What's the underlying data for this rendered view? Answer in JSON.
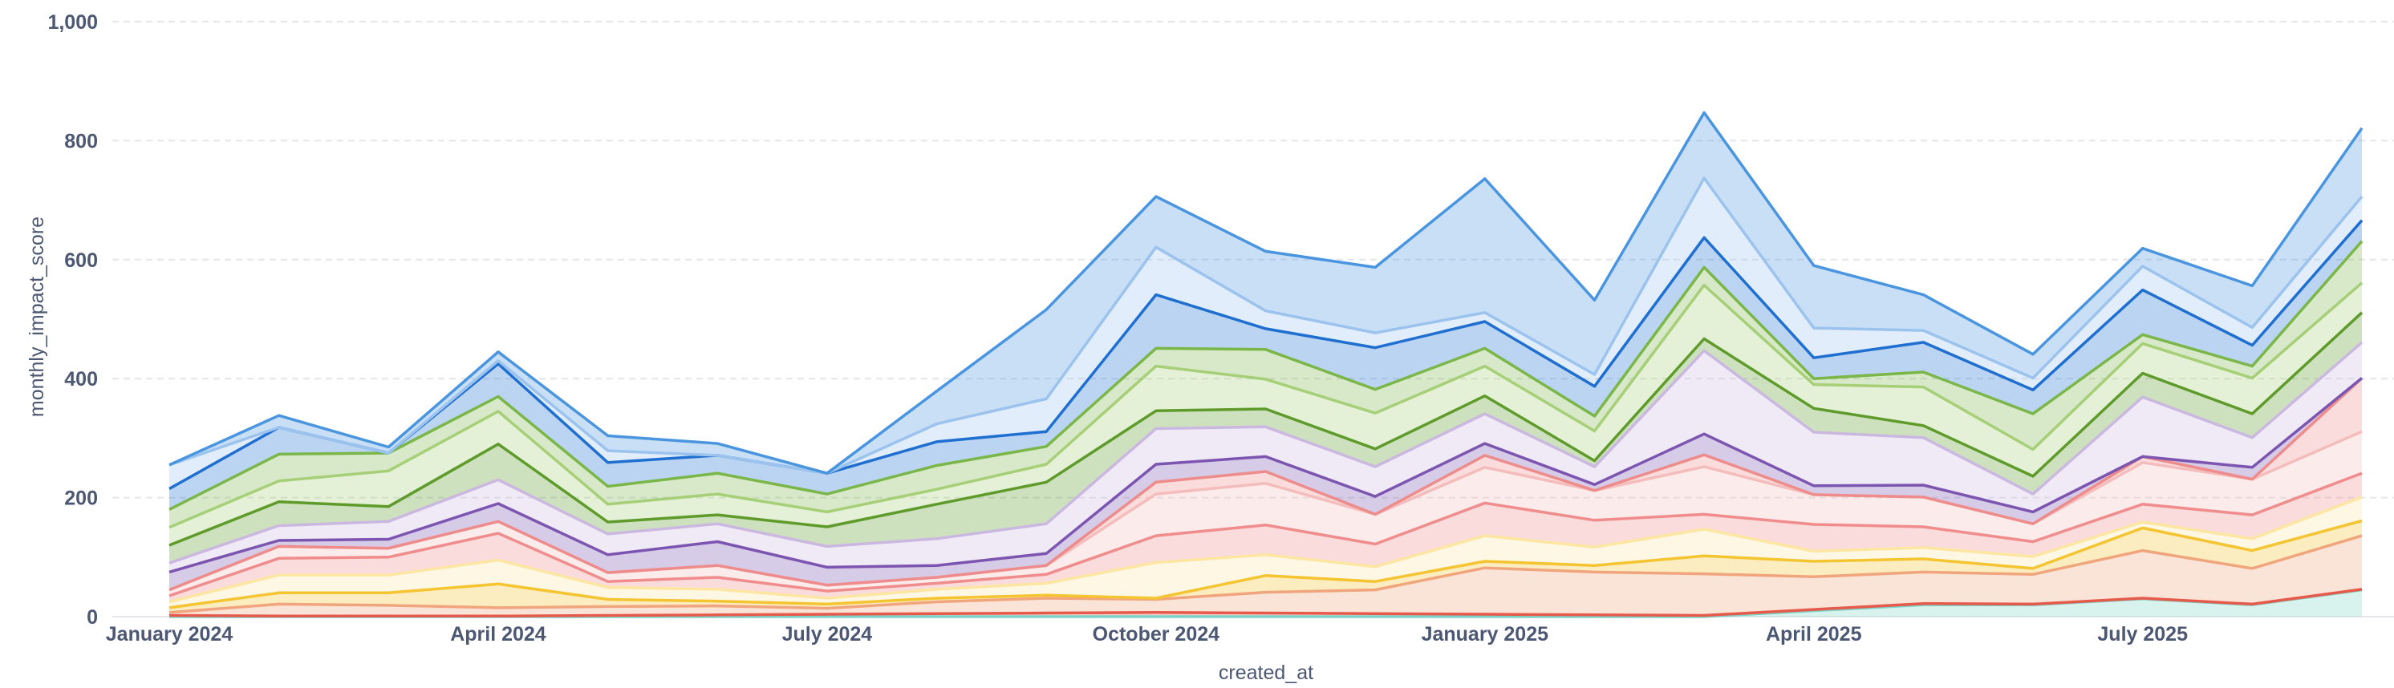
{
  "chart_data": {
    "type": "area",
    "stacked": true,
    "xlabel": "created_at",
    "ylabel": "monthly_impact_score",
    "ylim": [
      0,
      1000
    ],
    "yticks": [
      "0",
      "200",
      "400",
      "600",
      "800",
      "1,000"
    ],
    "ytick_values": [
      0,
      200,
      400,
      600,
      800,
      1000
    ],
    "x": [
      "2024-01",
      "2024-02",
      "2024-03",
      "2024-04",
      "2024-05",
      "2024-06",
      "2024-07",
      "2024-08",
      "2024-09",
      "2024-10",
      "2024-11",
      "2024-12",
      "2025-01",
      "2025-02",
      "2025-03",
      "2025-04",
      "2025-05",
      "2025-06",
      "2025-07",
      "2025-08",
      "2025-09"
    ],
    "xticks": [
      {
        "label": "January 2024",
        "index": 0
      },
      {
        "label": "April 2024",
        "index": 3
      },
      {
        "label": "July 2024",
        "index": 6
      },
      {
        "label": "October 2024",
        "index": 9
      },
      {
        "label": "January 2025",
        "index": 12
      },
      {
        "label": "April 2025",
        "index": 15
      },
      {
        "label": "July 2025",
        "index": 18
      }
    ],
    "grid": true,
    "legend": false,
    "series": [
      {
        "color": "#7ed3c8",
        "values": [
          0,
          0,
          0,
          0,
          0,
          0,
          0,
          0,
          0,
          0,
          0,
          0,
          0,
          0,
          0,
          10,
          20,
          20,
          30,
          20,
          45
        ]
      },
      {
        "color": "#e55a4b",
        "values": [
          2,
          1,
          1,
          1,
          2,
          3,
          4,
          5,
          6,
          7,
          6,
          5,
          4,
          3,
          2,
          2,
          2,
          1,
          1,
          1,
          1
        ]
      },
      {
        "color": "#f0a57c",
        "values": [
          5,
          20,
          18,
          14,
          15,
          15,
          10,
          20,
          25,
          22,
          35,
          40,
          78,
          72,
          70,
          55,
          53,
          50,
          80,
          60,
          90
        ]
      },
      {
        "color": "#f5c431",
        "values": [
          8,
          19,
          21,
          40,
          12,
          8,
          7,
          6,
          5,
          2,
          28,
          14,
          11,
          11,
          30,
          26,
          22,
          10,
          38,
          30,
          25
        ]
      },
      {
        "color": "#fde6a1",
        "values": [
          10,
          30,
          30,
          40,
          20,
          20,
          10,
          15,
          20,
          60,
          35,
          25,
          43,
          31,
          45,
          17,
          19,
          20,
          10,
          20,
          40
        ]
      },
      {
        "color": "#f08c8c",
        "values": [
          10,
          28,
          30,
          45,
          10,
          20,
          12,
          10,
          15,
          45,
          50,
          38,
          55,
          45,
          25,
          45,
          35,
          25,
          30,
          40,
          40
        ]
      },
      {
        "color": "#f5bcbc",
        "values": [
          10,
          20,
          15,
          20,
          15,
          20,
          10,
          10,
          15,
          70,
          70,
          50,
          60,
          50,
          80,
          50,
          50,
          30,
          70,
          60,
          70
        ]
      },
      {
        "color": "#ee8c8c",
        "values": [
          0,
          0,
          0,
          0,
          0,
          0,
          0,
          0,
          0,
          20,
          20,
          0,
          20,
          0,
          20,
          0,
          0,
          0,
          10,
          0,
          90
        ]
      },
      {
        "color": "#7c55b0",
        "values": [
          30,
          10,
          15,
          30,
          30,
          40,
          30,
          20,
          20,
          30,
          25,
          30,
          20,
          10,
          35,
          15,
          20,
          20,
          0,
          20,
          0
        ]
      },
      {
        "color": "#cbb8e0",
        "values": [
          15,
          25,
          30,
          40,
          35,
          30,
          35,
          45,
          50,
          60,
          50,
          50,
          50,
          30,
          140,
          90,
          80,
          30,
          100,
          50,
          60
        ]
      },
      {
        "color": "#5e9b2b",
        "values": [
          30,
          40,
          25,
          60,
          20,
          15,
          33,
          58,
          70,
          30,
          30,
          30,
          30,
          10,
          20,
          40,
          20,
          30,
          40,
          40,
          50
        ]
      },
      {
        "color": "#a6cf78",
        "values": [
          30,
          35,
          60,
          55,
          30,
          35,
          25,
          25,
          30,
          75,
          50,
          60,
          50,
          50,
          90,
          40,
          65,
          45,
          50,
          60,
          50
        ]
      },
      {
        "color": "#7ab648",
        "values": [
          30,
          45,
          30,
          25,
          30,
          35,
          30,
          40,
          30,
          30,
          50,
          40,
          30,
          25,
          30,
          10,
          25,
          60,
          15,
          20,
          70
        ]
      },
      {
        "color": "#1f6fd1",
        "values": [
          35,
          45,
          0,
          55,
          40,
          30,
          35,
          40,
          25,
          90,
          35,
          70,
          45,
          50,
          50,
          35,
          50,
          40,
          75,
          35,
          35
        ]
      },
      {
        "color": "#9bc3ee",
        "values": [
          40,
          0,
          0,
          5,
          20,
          0,
          0,
          30,
          55,
          80,
          30,
          25,
          15,
          20,
          100,
          50,
          20,
          20,
          40,
          30,
          40
        ]
      },
      {
        "color": "#4a95e0",
        "values": [
          0,
          20,
          10,
          15,
          25,
          20,
          0,
          55,
          150,
          85,
          100,
          110,
          225,
          125,
          110,
          105,
          60,
          40,
          30,
          70,
          115
        ]
      }
    ]
  }
}
